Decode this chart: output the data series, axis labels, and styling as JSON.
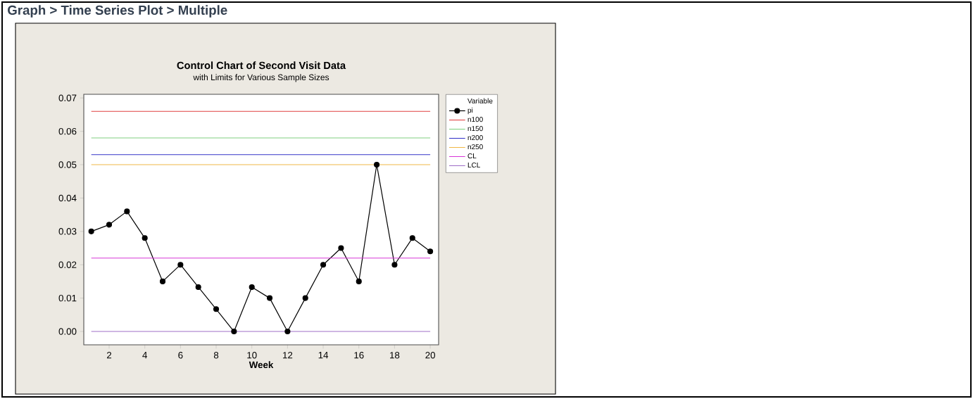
{
  "chart_data": {
    "type": "line",
    "title": "Control Chart of Second Visit Data",
    "subtitle": "with Limits for Various Sample Sizes",
    "xlabel": "Week",
    "legend_title": "Variable",
    "annotations": [
      "Graph > Time Series Plot > Multiple"
    ],
    "x": [
      1,
      2,
      3,
      4,
      5,
      6,
      7,
      8,
      9,
      10,
      11,
      12,
      13,
      14,
      15,
      16,
      17,
      18,
      19,
      20
    ],
    "series": [
      {
        "name": "pi",
        "color": "#000000",
        "marker": "circle",
        "values": [
          0.03,
          0.032,
          0.036,
          0.028,
          0.015,
          0.02,
          0.0133,
          0.0067,
          0.0,
          0.0133,
          0.01,
          0.0,
          0.01,
          0.02,
          0.025,
          0.015,
          0.05,
          0.02,
          0.028,
          0.024
        ]
      },
      {
        "name": "n100",
        "color": "#e04040",
        "marker": "none",
        "values": [
          0.066,
          0.066,
          0.066,
          0.066,
          0.066,
          0.066,
          0.066,
          0.066,
          0.066,
          0.066,
          0.066,
          0.066,
          0.066,
          0.066,
          0.066,
          0.066,
          0.066,
          0.066,
          0.066,
          0.066
        ]
      },
      {
        "name": "n150",
        "color": "#80d080",
        "marker": "none",
        "values": [
          0.058,
          0.058,
          0.058,
          0.058,
          0.058,
          0.058,
          0.058,
          0.058,
          0.058,
          0.058,
          0.058,
          0.058,
          0.058,
          0.058,
          0.058,
          0.058,
          0.058,
          0.058,
          0.058,
          0.058
        ]
      },
      {
        "name": "n200",
        "color": "#3535c8",
        "marker": "none",
        "values": [
          0.053,
          0.053,
          0.053,
          0.053,
          0.053,
          0.053,
          0.053,
          0.053,
          0.053,
          0.053,
          0.053,
          0.053,
          0.053,
          0.053,
          0.053,
          0.053,
          0.053,
          0.053,
          0.053,
          0.053
        ]
      },
      {
        "name": "n250",
        "color": "#f0b848",
        "marker": "none",
        "values": [
          0.05,
          0.05,
          0.05,
          0.05,
          0.05,
          0.05,
          0.05,
          0.05,
          0.05,
          0.05,
          0.05,
          0.05,
          0.05,
          0.05,
          0.05,
          0.05,
          0.05,
          0.05,
          0.05,
          0.05
        ]
      },
      {
        "name": "CL",
        "color": "#d838d8",
        "marker": "none",
        "values": [
          0.022,
          0.022,
          0.022,
          0.022,
          0.022,
          0.022,
          0.022,
          0.022,
          0.022,
          0.022,
          0.022,
          0.022,
          0.022,
          0.022,
          0.022,
          0.022,
          0.022,
          0.022,
          0.022,
          0.022
        ]
      },
      {
        "name": "LCL",
        "color": "#a070c8",
        "marker": "none",
        "values": [
          0.0,
          0.0,
          0.0,
          0.0,
          0.0,
          0.0,
          0.0,
          0.0,
          0.0,
          0.0,
          0.0,
          0.0,
          0.0,
          0.0,
          0.0,
          0.0,
          0.0,
          0.0,
          0.0,
          0.0
        ]
      }
    ],
    "xlim": [
      0.58,
      20.47
    ],
    "ylim": [
      -0.004,
      0.0711
    ],
    "xticks": [
      2,
      4,
      6,
      8,
      10,
      12,
      14,
      16,
      18,
      20
    ],
    "yticks": [
      {
        "value": 0.0,
        "label": "0.00"
      },
      {
        "value": 0.01,
        "label": "0.01"
      },
      {
        "value": 0.02,
        "label": "0.02"
      },
      {
        "value": 0.03,
        "label": "0.03"
      },
      {
        "value": 0.04,
        "label": "0.04"
      },
      {
        "value": 0.05,
        "label": "0.05"
      },
      {
        "value": 0.06,
        "label": "0.06"
      },
      {
        "value": 0.07,
        "label": "0.07"
      }
    ],
    "grid": false,
    "legend": "right",
    "line_style": "solid"
  }
}
